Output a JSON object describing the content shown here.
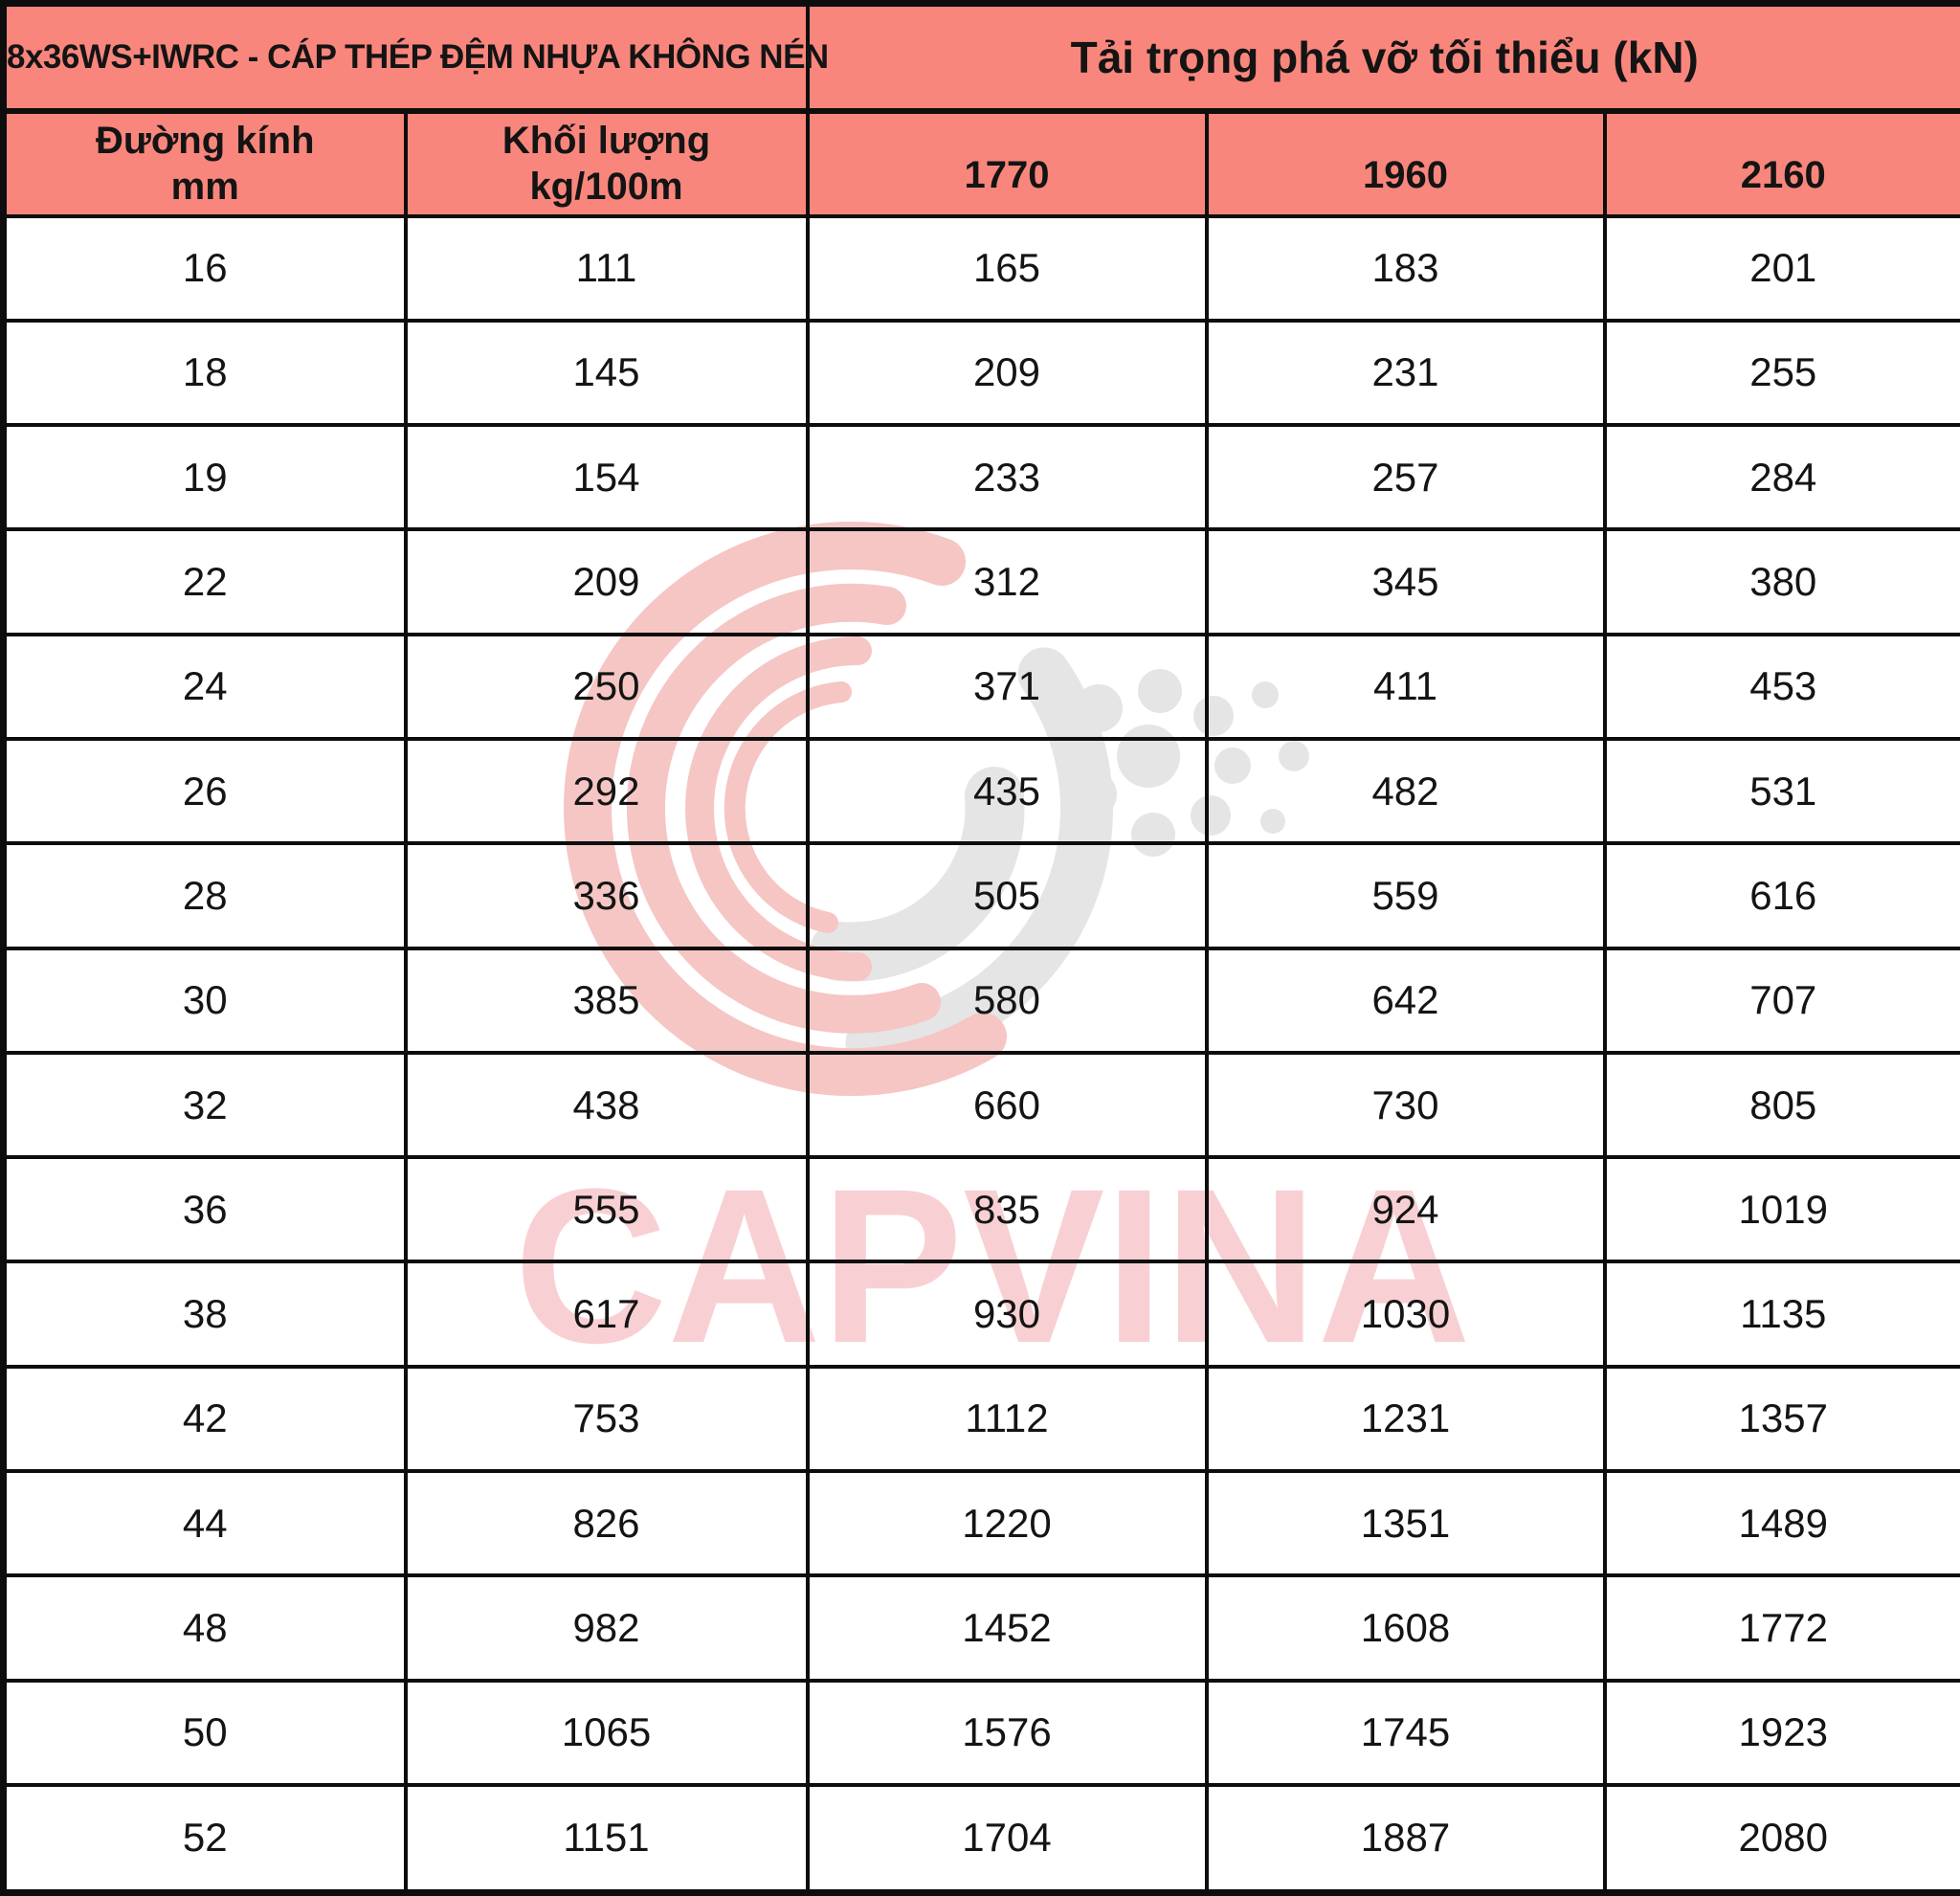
{
  "page": {
    "background": "#ffffff",
    "grid_color": "#0d0d0d",
    "header_bg": "#F9867C"
  },
  "header": {
    "product_title": "8x36WS+IWRC - CÁP THÉP ĐỆM NHỰA KHÔNG NÉN",
    "load_title": "Tải trọng phá vỡ tối thiểu (kN)",
    "diameter_label": "Đường kính",
    "diameter_unit": "mm",
    "weight_label": "Khối lượng",
    "weight_unit": "kg/100m",
    "grades": [
      "1770",
      "1960",
      "2160"
    ]
  },
  "table": {
    "columns": [
      "Đường kính mm",
      "Khối lượng kg/100m",
      "1770",
      "1960",
      "2160"
    ],
    "rows": [
      [
        "16",
        "111",
        "165",
        "183",
        "201"
      ],
      [
        "18",
        "145",
        "209",
        "231",
        "255"
      ],
      [
        "19",
        "154",
        "233",
        "257",
        "284"
      ],
      [
        "22",
        "209",
        "312",
        "345",
        "380"
      ],
      [
        "24",
        "250",
        "371",
        "411",
        "453"
      ],
      [
        "26",
        "292",
        "435",
        "482",
        "531"
      ],
      [
        "28",
        "336",
        "505",
        "559",
        "616"
      ],
      [
        "30",
        "385",
        "580",
        "642",
        "707"
      ],
      [
        "32",
        "438",
        "660",
        "730",
        "805"
      ],
      [
        "36",
        "555",
        "835",
        "924",
        "1019"
      ],
      [
        "38",
        "617",
        "930",
        "1030",
        "1135"
      ],
      [
        "42",
        "753",
        "1112",
        "1231",
        "1357"
      ],
      [
        "44",
        "826",
        "1220",
        "1351",
        "1489"
      ],
      [
        "48",
        "982",
        "1452",
        "1608",
        "1772"
      ],
      [
        "50",
        "1065",
        "1576",
        "1745",
        "1923"
      ],
      [
        "52",
        "1151",
        "1704",
        "1887",
        "2080"
      ]
    ]
  },
  "watermark": {
    "brand": "CAPVINA",
    "text_color": "#F8D0D3",
    "arc_color": "#F5C6C4",
    "gray_color": "#E5E5E5"
  }
}
